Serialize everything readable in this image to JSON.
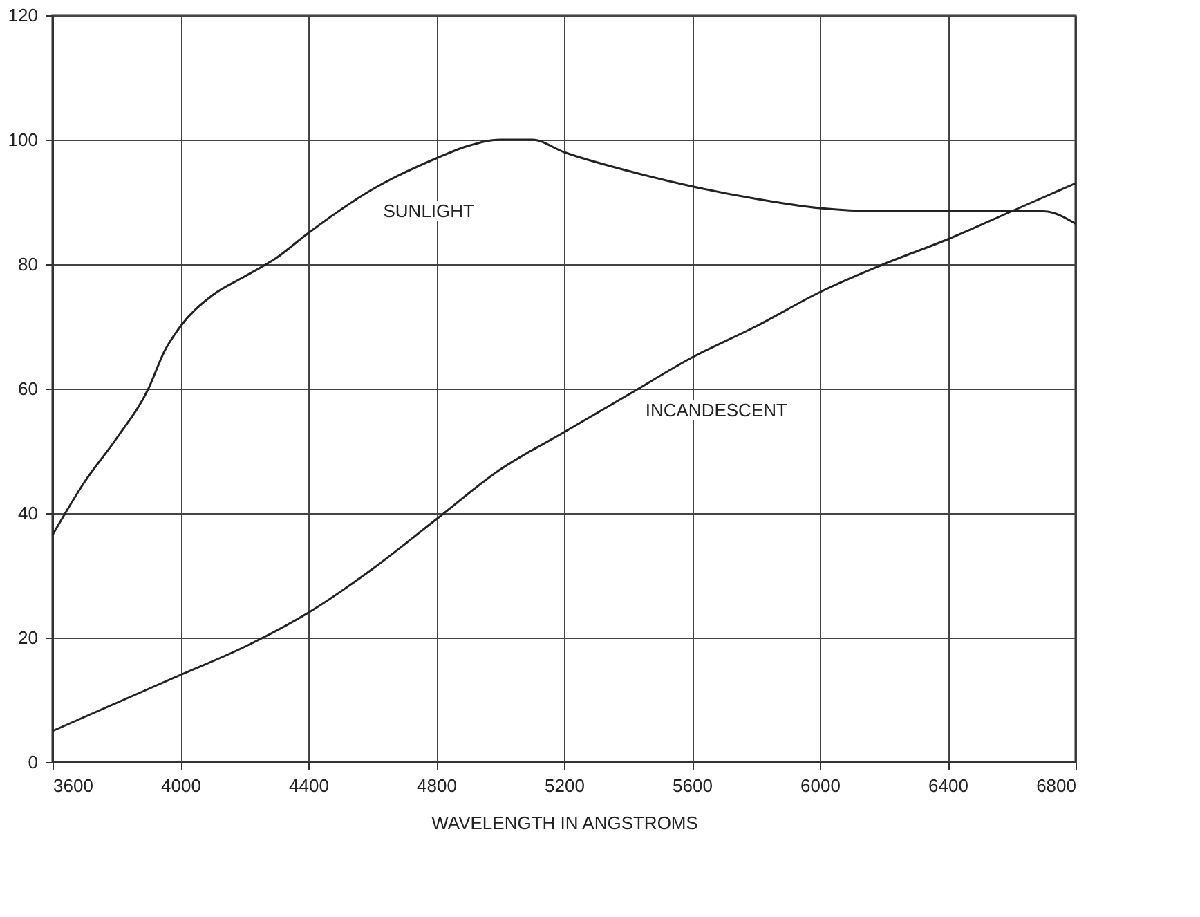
{
  "chart_data": {
    "type": "line",
    "xlabel": "WAVELENGTH IN ANGSTROMS",
    "x": [
      3600,
      3700,
      3800,
      3900,
      3950,
      4000,
      4100,
      4200,
      4300,
      4400,
      4600,
      4800,
      4900,
      5000,
      5100,
      5200,
      5400,
      5600,
      5800,
      6000,
      6200,
      6400,
      6600,
      6700,
      6800
    ],
    "series": [
      {
        "color": "#222222",
        "values": [
          36.5,
          45,
          52,
          60,
          66,
          70,
          75,
          78,
          81,
          85,
          92,
          97,
          99,
          100,
          100,
          98,
          95,
          92.5,
          90.5,
          89,
          88.5,
          88.5,
          88.5,
          88.5,
          86.5
        ]
      },
      {
        "color": "#222222",
        "x": [
          3600,
          3800,
          4000,
          4200,
          4400,
          4600,
          4800,
          5000,
          5200,
          5400,
          5600,
          5800,
          6000,
          6200,
          6400,
          6600,
          6800
        ],
        "values": [
          5,
          9.5,
          14,
          18.5,
          24,
          31,
          39,
          47,
          53,
          59,
          65,
          70,
          75.5,
          80,
          84,
          88.5,
          93
        ]
      }
    ],
    "annotations": [
      {
        "text": "SUNLIGHT",
        "x": 4600,
        "y": 92
      },
      {
        "text": "INCANDESCENT",
        "x": 5420,
        "y": 60
      }
    ],
    "xlim": [
      3600,
      6800
    ],
    "xticks": [
      3600,
      4000,
      4400,
      4800,
      5200,
      5600,
      6000,
      6400,
      6800
    ],
    "ylim": [
      0,
      120
    ],
    "yticks": [
      0,
      20,
      40,
      60,
      80,
      100,
      120
    ],
    "grid": true,
    "line_style": "solid",
    "marker": "none"
  }
}
